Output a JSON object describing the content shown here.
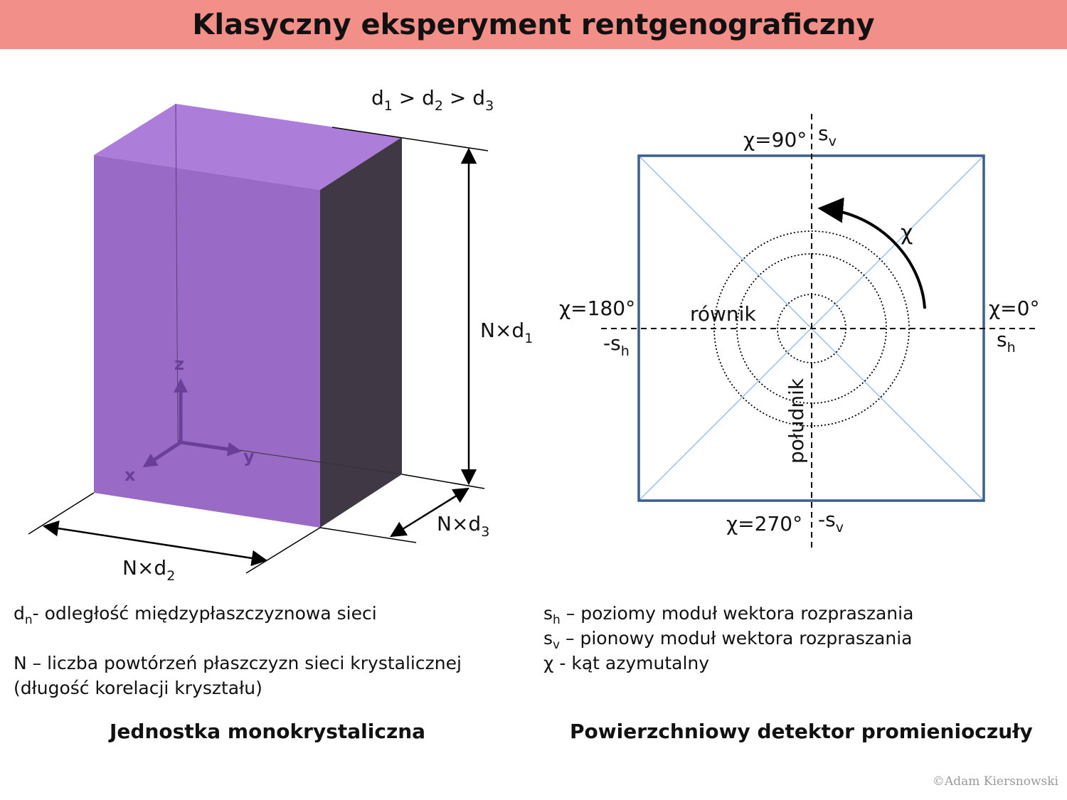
{
  "title": "Klasyczny eksperyment rentgenograficzny",
  "crystal": {
    "relation_parts": [
      "d",
      "1",
      " > d",
      "2",
      " > d",
      "3"
    ],
    "dim_height": [
      "N×d",
      "1"
    ],
    "dim_width": [
      "N×d",
      "2"
    ],
    "dim_depth": [
      "N×d",
      "3"
    ],
    "axes": {
      "z": "z",
      "y": "y",
      "x": "x"
    },
    "colors": {
      "front": "#9a6bc6",
      "top": "#ad7ed9",
      "side": "#403844",
      "axes": "#6a3f9a"
    }
  },
  "detector": {
    "chi_90": "χ=90°",
    "chi_180": "χ=180°",
    "chi_0": "χ=0°",
    "chi_270": "χ=270°",
    "chi": "χ",
    "sv_pos": [
      "s",
      "v"
    ],
    "sv_neg": [
      "-s",
      "v"
    ],
    "sh_pos": [
      "s",
      "h"
    ],
    "sh_neg": [
      "-s",
      "h"
    ],
    "equator": "równik",
    "meridian": "południk",
    "colors": {
      "frame": "#3c5f8e",
      "diagonals": "#7aa7d8"
    }
  },
  "legend_left": {
    "dn_sym": "d",
    "dn_sub": "n",
    "dn_text": "- odległość międzypłaszczyznowa sieci",
    "n_line1": "N – liczba powtórzeń płaszczyzn sieci krystalicznej",
    "n_line2": "(długość korelacji kryształu)"
  },
  "legend_right": {
    "sh_sym": "s",
    "sh_sub": "h",
    "sh_text": " – poziomy moduł wektora rozpraszania",
    "sv_sym": "s",
    "sv_sub": "v",
    "sv_text": " – pionowy moduł wektora rozpraszania",
    "chi_text": "χ - kąt azymutalny"
  },
  "caption_left": "Jednostka monokrystaliczna",
  "caption_right": "Powierzchniowy detektor promienioczuły",
  "copyright": "©Adam Kiersnowski"
}
